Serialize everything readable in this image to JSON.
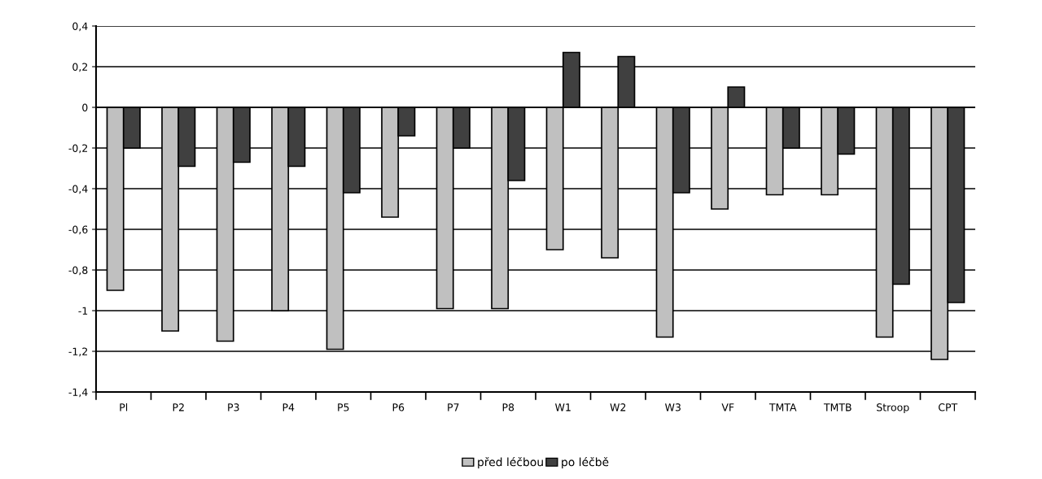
{
  "chart_data": {
    "type": "bar",
    "categories": [
      "Pl",
      "P2",
      "P3",
      "P4",
      "P5",
      "P6",
      "P7",
      "P8",
      "W1",
      "W2",
      "W3",
      "VF",
      "TMTA",
      "TMTB",
      "Stroop",
      "CPT"
    ],
    "series": [
      {
        "name": "před léčbou",
        "color": "#c0c0c0",
        "values": [
          -0.9,
          -1.1,
          -1.15,
          -1.0,
          -1.19,
          -0.54,
          -0.99,
          -0.99,
          -0.7,
          -0.74,
          -1.13,
          -0.5,
          -0.43,
          -0.43,
          -1.13,
          -1.24
        ]
      },
      {
        "name": "po léčbě",
        "color": "#404040",
        "values": [
          -0.2,
          -0.29,
          -0.27,
          -0.29,
          -0.42,
          -0.14,
          -0.2,
          -0.36,
          0.27,
          0.25,
          -0.42,
          0.1,
          -0.2,
          -0.23,
          -0.87,
          -0.96
        ]
      }
    ],
    "ylim": [
      -1.4,
      0.4
    ],
    "yticks": [
      {
        "value": -1.4,
        "label": "-1,4"
      },
      {
        "value": -1.2,
        "label": "-1,2"
      },
      -1,
      {
        "value": -0.8,
        "label": "-0,8"
      },
      {
        "value": -0.6,
        "label": "-0,6"
      },
      {
        "value": -0.4,
        "label": "-0,4"
      },
      {
        "value": -0.2,
        "label": "-0,2"
      },
      0,
      {
        "value": 0.2,
        "label": "0,2"
      },
      {
        "value": 0.4,
        "label": "0,4"
      }
    ],
    "grid": "y",
    "legend": "bottom"
  }
}
